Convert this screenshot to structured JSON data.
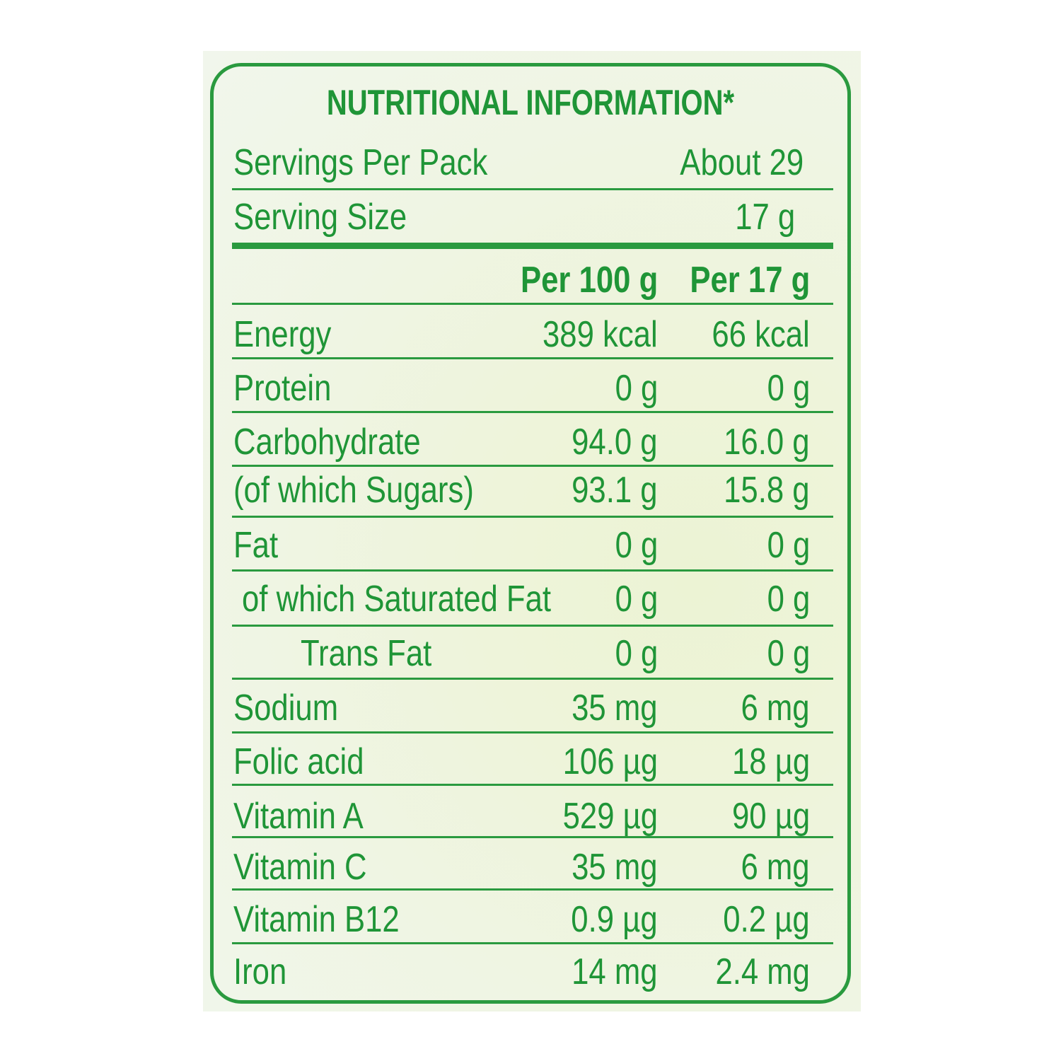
{
  "title": "NUTRITIONAL INFORMATION*",
  "servings_per_pack": {
    "label": "Servings Per Pack",
    "value": "About 29"
  },
  "serving_size": {
    "label": "Serving Size",
    "value": "17 g"
  },
  "columns": {
    "per100": "Per 100 g",
    "perServing": "Per 17 g"
  },
  "rows": [
    {
      "name": "Energy",
      "per100": "389 kcal",
      "perServing": "66 kcal"
    },
    {
      "name": "Protein",
      "per100": "0 g",
      "perServing": "0 g"
    },
    {
      "name": "Carbohydrate",
      "per100": "94.0 g",
      "perServing": "16.0 g"
    },
    {
      "name": "(of which Sugars)",
      "per100": "93.1 g",
      "perServing": "15.8 g"
    },
    {
      "name": "Fat",
      "per100": "0 g",
      "perServing": "0 g"
    },
    {
      "name": "of which Saturated Fat",
      "per100": "0 g",
      "perServing": "0 g"
    },
    {
      "name": "Trans Fat",
      "per100": "0 g",
      "perServing": "0 g"
    },
    {
      "name": "Sodium",
      "per100": "35 mg",
      "perServing": "6 mg"
    },
    {
      "name": "Folic acid",
      "per100": "106 µg",
      "perServing": "18 µg"
    },
    {
      "name": "Vitamin A",
      "per100": "529 µg",
      "perServing": "90 µg"
    },
    {
      "name": "Vitamin C",
      "per100": "35 mg",
      "perServing": "6 mg"
    },
    {
      "name": "Vitamin B12",
      "per100": "0.9 µg",
      "perServing": "0.2 µg"
    },
    {
      "name": "Iron",
      "per100": "14 mg",
      "perServing": "2.4 mg"
    }
  ],
  "colors": {
    "text": "#1f9537",
    "rule": "#2a9a3f",
    "background": "#eef4df"
  }
}
